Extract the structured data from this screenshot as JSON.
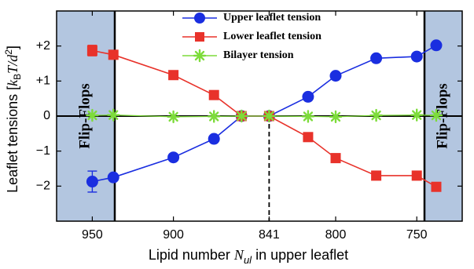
{
  "chart_data": {
    "type": "line",
    "xlabel": "Lipid number N_ul in upper leaflet",
    "xlabel_parts": {
      "before": "Lipid number ",
      "var": "N",
      "sub": "ul",
      "after": " in upper leaflet"
    },
    "ylabel": "Leaflet tensions [k_B T/d^2]",
    "ylabel_parts": {
      "before": "Leaflet tensions  [",
      "k": "k",
      "ksub": "B",
      "mid": "T/",
      "d": "d",
      "sup": "2",
      "after": "]"
    },
    "x_reversed": true,
    "xlim": [
      972,
      722
    ],
    "ylim": [
      -3,
      3
    ],
    "x_ticks": [
      950,
      900,
      841,
      800,
      750
    ],
    "y_ticks": [
      {
        "value": 2,
        "label": "+2"
      },
      {
        "value": 1,
        "label": "+1"
      },
      {
        "value": 0,
        "label": "0"
      },
      {
        "value": -1,
        "label": "−1"
      },
      {
        "value": -2,
        "label": "−2"
      }
    ],
    "x": [
      950,
      937,
      900,
      875,
      858,
      841,
      817,
      800,
      775,
      750,
      738
    ],
    "series": [
      {
        "name": "Upper leaflet tension",
        "color": "#1a2ee0",
        "marker": "circle",
        "values": [
          -1.87,
          -1.75,
          -1.18,
          -0.65,
          0.0,
          0.0,
          0.55,
          1.15,
          1.65,
          1.7,
          2.02
        ],
        "error": [
          0.3,
          0,
          0,
          0,
          0,
          0,
          0,
          0,
          0,
          0,
          0
        ]
      },
      {
        "name": "Lower leaflet tension",
        "color": "#e8322a",
        "marker": "square",
        "values": [
          1.87,
          1.75,
          1.17,
          0.6,
          0.0,
          0.0,
          -0.6,
          -1.2,
          -1.7,
          -1.7,
          -2.02
        ],
        "error": [
          0.15,
          0,
          0,
          0,
          0,
          0,
          0,
          0,
          0,
          0,
          0
        ]
      },
      {
        "name": "Bilayer tension",
        "color": "#7ddc3a",
        "marker": "asterisk",
        "values": [
          0.02,
          0.03,
          -0.02,
          -0.01,
          0.0,
          0.0,
          -0.01,
          -0.02,
          0.02,
          0.03,
          0.02
        ],
        "error": [
          0,
          0,
          0,
          0,
          0,
          0,
          0,
          0,
          0,
          0,
          0
        ]
      }
    ],
    "reference_line_x": 841,
    "reference_line_style": "dashed",
    "zero_line": true,
    "legend_placement": "top-center",
    "shaded_regions": [
      {
        "side": "left",
        "label": "Flip-Flops",
        "color": "#b3c6e0"
      },
      {
        "side": "right",
        "label": "Flip-Flops",
        "color": "#b3c6e0"
      }
    ],
    "grid": false
  }
}
